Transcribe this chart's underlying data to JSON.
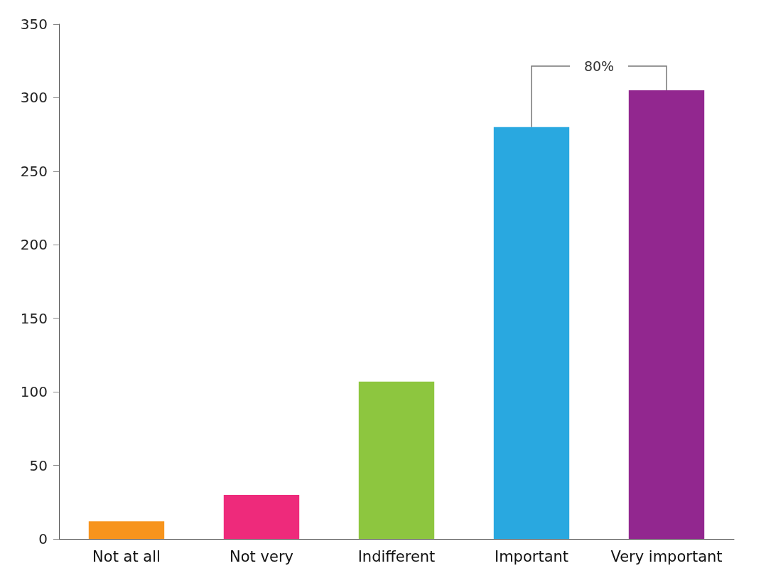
{
  "chart_data": {
    "type": "bar",
    "categories": [
      "Not at all",
      "Not very",
      "Indifferent",
      "Important",
      "Very important"
    ],
    "values": [
      12,
      30,
      107,
      280,
      305
    ],
    "colors": [
      "#f7941d",
      "#ee2a7b",
      "#8dc63f",
      "#29a8e0",
      "#92278f"
    ],
    "ylim": [
      0,
      350
    ],
    "yticks": [
      0,
      50,
      100,
      150,
      200,
      250,
      300,
      350
    ],
    "grid": false,
    "annotations": [
      {
        "text": "80%",
        "x": "Very important",
        "y": 305
      }
    ]
  }
}
